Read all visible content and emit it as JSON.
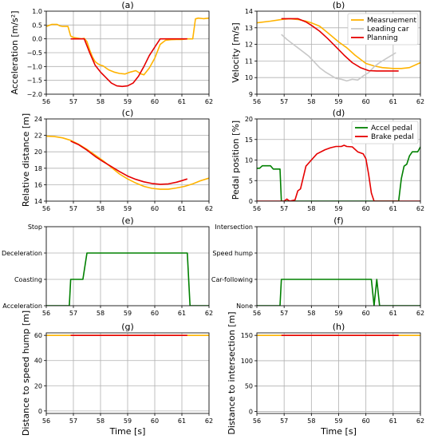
{
  "figure": {
    "background": "#ffffff",
    "grid": true
  },
  "chart_data": [
    {
      "id": "a",
      "type": "line",
      "title": "(a)",
      "xlabel": "",
      "ylabel": "Acceleration [m/s²]",
      "xlim": [
        56,
        62
      ],
      "ylim": [
        -2.0,
        1.0
      ],
      "xticks": [
        56,
        57,
        58,
        59,
        60,
        61,
        62
      ],
      "yticks": [
        -2.0,
        -1.5,
        -1.0,
        -0.5,
        0.0,
        0.5,
        1.0
      ],
      "ytick_labels": [
        "−2.0",
        "−1.5",
        "−1.0",
        "−0.5",
        "0.0",
        "0.5",
        "1.0"
      ],
      "series": [
        {
          "color": "#FFB300",
          "x": [
            56.0,
            56.2,
            56.4,
            56.5,
            56.6,
            56.8,
            56.9,
            57.0,
            57.2,
            57.3,
            57.4,
            57.5,
            57.6,
            57.7,
            57.8,
            57.9,
            58.0,
            58.1,
            58.2,
            58.3,
            58.5,
            58.7,
            58.9,
            59.1,
            59.3,
            59.5,
            59.6,
            59.8,
            60.0,
            60.2,
            60.4,
            60.6,
            60.8,
            61.0,
            61.2,
            61.4,
            61.5,
            61.6,
            61.8,
            62.0
          ],
          "y": [
            0.45,
            0.52,
            0.52,
            0.47,
            0.45,
            0.45,
            0.1,
            0.05,
            0.02,
            0.0,
            0.02,
            -0.1,
            -0.4,
            -0.65,
            -0.82,
            -0.9,
            -0.95,
            -0.98,
            -1.05,
            -1.12,
            -1.2,
            -1.25,
            -1.27,
            -1.2,
            -1.15,
            -1.27,
            -1.3,
            -1.05,
            -0.7,
            -0.2,
            -0.05,
            -0.03,
            -0.02,
            -0.02,
            0.0,
            0.0,
            0.72,
            0.75,
            0.73,
            0.75
          ]
        },
        {
          "color": "#E60000",
          "x": [
            56.9,
            57.4,
            57.6,
            57.8,
            58.0,
            58.2,
            58.4,
            58.6,
            58.8,
            59.0,
            59.2,
            59.4,
            59.6,
            59.8,
            60.0,
            60.2,
            60.4,
            60.6,
            60.8,
            61.0,
            61.2
          ],
          "y": [
            0.0,
            0.0,
            -0.5,
            -0.95,
            -1.2,
            -1.4,
            -1.6,
            -1.7,
            -1.72,
            -1.7,
            -1.6,
            -1.35,
            -1.0,
            -0.6,
            -0.3,
            0.0,
            0.0,
            0.0,
            0.0,
            0.0,
            0.0
          ]
        }
      ]
    },
    {
      "id": "b",
      "type": "line",
      "title": "(b)",
      "xlabel": "",
      "ylabel": "Velocity [m/s]",
      "xlim": [
        56,
        62
      ],
      "ylim": [
        9,
        14
      ],
      "xticks": [
        56,
        57,
        58,
        59,
        60,
        61,
        62
      ],
      "yticks": [
        9,
        10,
        11,
        12,
        13,
        14
      ],
      "ytick_labels": [
        "9",
        "10",
        "11",
        "12",
        "13",
        "14"
      ],
      "legend": {
        "position": "top-right",
        "entries": [
          "Measruement",
          "Leading car",
          "Planning"
        ]
      },
      "series": [
        {
          "name": "Measruement",
          "color": "#FFB300",
          "x": [
            56.0,
            56.5,
            56.9,
            57.2,
            57.5,
            57.8,
            58.0,
            58.3,
            58.6,
            59.0,
            59.3,
            59.6,
            60.0,
            60.3,
            60.6,
            61.0,
            61.3,
            61.6,
            62.0
          ],
          "y": [
            13.3,
            13.4,
            13.5,
            13.55,
            13.5,
            13.4,
            13.3,
            13.1,
            12.7,
            12.15,
            11.8,
            11.35,
            10.85,
            10.7,
            10.6,
            10.55,
            10.55,
            10.6,
            10.9
          ]
        },
        {
          "name": "Leading car",
          "color": "#C8C8C8",
          "x": [
            56.9,
            57.1,
            57.3,
            57.5,
            57.7,
            57.9,
            58.1,
            58.3,
            58.5,
            58.7,
            58.9,
            59.1,
            59.3,
            59.5,
            59.7,
            59.9,
            60.1,
            60.3,
            60.5,
            60.7,
            60.9,
            61.1
          ],
          "y": [
            12.6,
            12.3,
            12.05,
            11.8,
            11.55,
            11.3,
            10.95,
            10.6,
            10.35,
            10.15,
            9.95,
            9.9,
            9.8,
            9.9,
            9.85,
            10.1,
            10.3,
            10.65,
            10.9,
            11.1,
            11.3,
            11.5
          ]
        },
        {
          "name": "Planning",
          "color": "#E60000",
          "x": [
            56.9,
            57.2,
            57.5,
            57.8,
            58.0,
            58.3,
            58.6,
            58.9,
            59.2,
            59.5,
            59.8,
            60.1,
            60.4,
            60.7,
            61.0,
            61.2
          ],
          "y": [
            13.55,
            13.55,
            13.55,
            13.35,
            13.15,
            12.8,
            12.35,
            11.85,
            11.35,
            10.9,
            10.6,
            10.42,
            10.4,
            10.4,
            10.4,
            10.4
          ]
        }
      ]
    },
    {
      "id": "c",
      "type": "line",
      "title": "(c)",
      "xlabel": "",
      "ylabel": "Relative distance [m]",
      "xlim": [
        56,
        62
      ],
      "ylim": [
        14,
        24
      ],
      "xticks": [
        56,
        57,
        58,
        59,
        60,
        61,
        62
      ],
      "yticks": [
        14,
        16,
        18,
        20,
        22,
        24
      ],
      "ytick_labels": [
        "14",
        "16",
        "18",
        "20",
        "22",
        "24"
      ],
      "series": [
        {
          "color": "#FFB300",
          "x": [
            56.0,
            56.3,
            56.6,
            56.9,
            57.2,
            57.5,
            57.8,
            58.1,
            58.4,
            58.7,
            59.0,
            59.3,
            59.6,
            59.9,
            60.2,
            60.5,
            60.8,
            61.1,
            61.4,
            61.7,
            62.0
          ],
          "y": [
            21.9,
            21.85,
            21.7,
            21.4,
            20.9,
            20.3,
            19.6,
            18.9,
            18.1,
            17.3,
            16.7,
            16.2,
            15.8,
            15.55,
            15.45,
            15.45,
            15.6,
            15.8,
            16.1,
            16.5,
            16.8
          ]
        },
        {
          "color": "#E60000",
          "x": [
            56.9,
            57.2,
            57.5,
            57.8,
            58.1,
            58.4,
            58.7,
            59.0,
            59.3,
            59.6,
            59.9,
            60.2,
            60.5,
            60.8,
            61.0,
            61.2
          ],
          "y": [
            21.3,
            20.85,
            20.2,
            19.45,
            18.8,
            18.2,
            17.6,
            17.05,
            16.65,
            16.35,
            16.15,
            16.05,
            16.1,
            16.3,
            16.5,
            16.7
          ]
        }
      ]
    },
    {
      "id": "d",
      "type": "line",
      "title": "(d)",
      "xlabel": "",
      "ylabel": "Pedal position [%]",
      "xlim": [
        56,
        62
      ],
      "ylim": [
        0,
        20
      ],
      "xticks": [
        56,
        57,
        58,
        59,
        60,
        61,
        62
      ],
      "yticks": [
        0,
        5,
        10,
        15,
        20
      ],
      "ytick_labels": [
        "0",
        "5",
        "10",
        "15",
        "20"
      ],
      "legend": {
        "position": "top-right",
        "entries": [
          "Accel pedal",
          "Brake pedal"
        ]
      },
      "series": [
        {
          "name": "Accel pedal",
          "color": "#008000",
          "x": [
            56.0,
            56.1,
            56.2,
            56.3,
            56.5,
            56.6,
            56.8,
            56.85,
            56.9,
            61.2,
            61.3,
            61.4,
            61.5,
            61.6,
            61.7,
            61.8,
            61.9,
            62.0
          ],
          "y": [
            8.0,
            8.0,
            8.6,
            8.6,
            8.6,
            7.8,
            7.8,
            7.8,
            0.0,
            0.0,
            5.5,
            8.5,
            9.0,
            11.0,
            12.0,
            12.0,
            12.0,
            13.2
          ]
        },
        {
          "name": "Brake pedal",
          "color": "#E60000",
          "x": [
            56.0,
            57.0,
            57.1,
            57.2,
            57.4,
            57.5,
            57.6,
            57.8,
            58.0,
            58.2,
            58.5,
            58.7,
            58.9,
            59.1,
            59.2,
            59.3,
            59.5,
            59.7,
            59.9,
            60.0,
            60.1,
            60.2,
            60.3,
            62.0
          ],
          "y": [
            0.0,
            0.0,
            0.5,
            0.0,
            0.3,
            2.5,
            3.0,
            8.5,
            10.0,
            11.5,
            12.5,
            13.0,
            13.3,
            13.3,
            13.6,
            13.3,
            13.2,
            12.0,
            11.5,
            10.3,
            6.5,
            2.0,
            0.0,
            0.0
          ]
        }
      ]
    },
    {
      "id": "e",
      "type": "line",
      "title": "(e)",
      "xlabel": "",
      "ylabel": "",
      "xlim": [
        56,
        62
      ],
      "ylim": [
        0,
        3
      ],
      "xticks": [
        56,
        57,
        58,
        59,
        60,
        61,
        62
      ],
      "yticks": [
        0,
        1,
        2,
        3
      ],
      "ytick_labels": [
        "Acceleration",
        "Coasting",
        "Deceleration",
        "Stop"
      ],
      "series": [
        {
          "color": "#008000",
          "x": [
            56.0,
            56.85,
            56.9,
            57.35,
            57.5,
            61.2,
            61.3,
            62.0
          ],
          "y": [
            0,
            0,
            1,
            1,
            2,
            2,
            0,
            0
          ]
        }
      ]
    },
    {
      "id": "f",
      "type": "line",
      "title": "(f)",
      "xlabel": "",
      "ylabel": "",
      "xlim": [
        56,
        62
      ],
      "ylim": [
        0,
        3
      ],
      "xticks": [
        56,
        57,
        58,
        59,
        60,
        61,
        62
      ],
      "yticks": [
        0,
        1,
        2,
        3
      ],
      "ytick_labels": [
        "None",
        "Car-following",
        "Speed hump",
        "Intersection"
      ],
      "series": [
        {
          "color": "#008000",
          "x": [
            56.0,
            56.85,
            56.9,
            60.2,
            60.3,
            60.4,
            60.5,
            62.0
          ],
          "y": [
            0,
            0,
            1,
            1,
            0,
            1,
            0,
            0
          ]
        }
      ]
    },
    {
      "id": "g",
      "type": "line",
      "title": "(g)",
      "xlabel": "Time [s]",
      "ylabel": "Distance to speed hump [m]",
      "xlim": [
        56,
        62
      ],
      "ylim": [
        -2,
        62
      ],
      "xticks": [
        56,
        57,
        58,
        59,
        60,
        61,
        62
      ],
      "yticks": [
        0,
        20,
        40,
        60
      ],
      "ytick_labels": [
        "0",
        "20",
        "40",
        "60"
      ],
      "series": [
        {
          "color": "#FFB300",
          "x": [
            56.0,
            62.0
          ],
          "y": [
            60,
            60
          ]
        },
        {
          "color": "#E60000",
          "x": [
            56.9,
            61.2
          ],
          "y": [
            60,
            60
          ]
        }
      ]
    },
    {
      "id": "h",
      "type": "line",
      "title": "(h)",
      "xlabel": "Time [s]",
      "ylabel": "Distance to intersection [m]",
      "xlim": [
        56,
        62
      ],
      "ylim": [
        -4,
        155
      ],
      "xticks": [
        56,
        57,
        58,
        59,
        60,
        61,
        62
      ],
      "yticks": [
        0,
        50,
        100,
        150
      ],
      "ytick_labels": [
        "0",
        "50",
        "100",
        "150"
      ],
      "series": [
        {
          "color": "#FFB300",
          "x": [
            56.0,
            62.0
          ],
          "y": [
            150,
            150
          ]
        },
        {
          "color": "#E60000",
          "x": [
            56.9,
            61.2
          ],
          "y": [
            150,
            150
          ]
        }
      ]
    }
  ]
}
